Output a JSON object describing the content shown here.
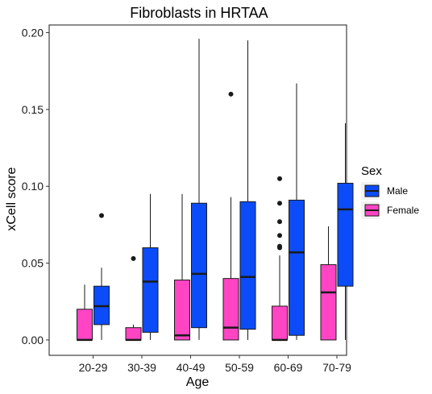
{
  "chart_data": {
    "type": "boxplot",
    "title": "Fibroblasts in HRTAA",
    "xlabel": "Age",
    "ylabel": "xCell score",
    "categories": [
      "20-29",
      "30-39",
      "40-49",
      "50-59",
      "60-69",
      "70-79"
    ],
    "ylim": [
      -0.01,
      0.205
    ],
    "yticks": [
      0.0,
      0.05,
      0.1,
      0.15,
      0.2
    ],
    "ytick_labels": [
      "0.00",
      "0.05",
      "0.10",
      "0.15",
      "0.20"
    ],
    "legend": {
      "title": "Sex",
      "placement": "right",
      "entries": [
        "Male",
        "Female"
      ]
    },
    "grid": false,
    "series": [
      {
        "name": "Female",
        "color": "#FF44C4",
        "boxes": [
          {
            "min": 0.0,
            "q1": 0.0,
            "median": 0.0,
            "q3": 0.02,
            "max": 0.036,
            "outliers": []
          },
          {
            "min": 0.0,
            "q1": 0.0,
            "median": 0.0,
            "q3": 0.008,
            "max": 0.01,
            "outliers": [
              0.053
            ]
          },
          {
            "min": 0.0,
            "q1": 0.0,
            "median": 0.003,
            "q3": 0.039,
            "max": 0.095,
            "outliers": []
          },
          {
            "min": 0.0,
            "q1": 0.0,
            "median": 0.008,
            "q3": 0.04,
            "max": 0.093,
            "outliers": [
              0.16
            ]
          },
          {
            "min": 0.0,
            "q1": 0.0,
            "median": 0.0,
            "q3": 0.022,
            "max": 0.055,
            "outliers": [
              0.06,
              0.061,
              0.068,
              0.077,
              0.089,
              0.105
            ]
          },
          {
            "min": 0.0,
            "q1": 0.0,
            "median": 0.031,
            "q3": 0.049,
            "max": 0.074,
            "outliers": []
          }
        ]
      },
      {
        "name": "Male",
        "color": "#0B4CF8",
        "boxes": [
          {
            "min": 0.0,
            "q1": 0.01,
            "median": 0.022,
            "q3": 0.035,
            "max": 0.047,
            "outliers": [
              0.081
            ]
          },
          {
            "min": 0.0,
            "q1": 0.005,
            "median": 0.038,
            "q3": 0.06,
            "max": 0.095,
            "outliers": []
          },
          {
            "min": 0.0,
            "q1": 0.008,
            "median": 0.043,
            "q3": 0.089,
            "max": 0.196,
            "outliers": []
          },
          {
            "min": 0.0,
            "q1": 0.007,
            "median": 0.041,
            "q3": 0.09,
            "max": 0.195,
            "outliers": []
          },
          {
            "min": 0.0,
            "q1": 0.003,
            "median": 0.057,
            "q3": 0.091,
            "max": 0.167,
            "outliers": []
          },
          {
            "min": 0.0,
            "q1": 0.035,
            "median": 0.085,
            "q3": 0.102,
            "max": 0.141,
            "outliers": []
          }
        ]
      }
    ]
  }
}
